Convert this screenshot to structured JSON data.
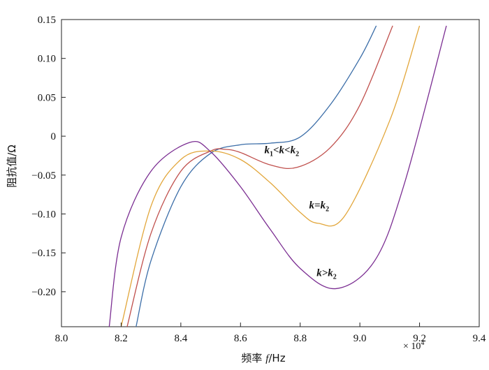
{
  "chart_data": {
    "type": "line",
    "title": "",
    "xlabel": "频率 f/Hz",
    "xlabel_parts": [
      "频率 ",
      "f",
      "/Hz"
    ],
    "ylabel": "阻抗值/Ω",
    "x_multiplier": "× 10",
    "x_multiplier_exp": "4",
    "xlim": [
      8.0,
      9.4
    ],
    "ylim": [
      -0.245,
      0.15
    ],
    "x_ticks": [
      8.0,
      8.2,
      8.4,
      8.6,
      8.8,
      9.0,
      9.2,
      9.4
    ],
    "x_tick_labels": [
      "8.0",
      "8.2",
      "8.4",
      "8.6",
      "8.8",
      "9.0",
      "9.2",
      "9.4"
    ],
    "y_ticks": [
      0.15,
      0.1,
      0.05,
      0,
      -0.05,
      -0.1,
      -0.15,
      -0.2
    ],
    "y_tick_labels": [
      "0.15",
      "0.10",
      "0.05",
      "0",
      "−0.05",
      "−0.10",
      "−0.15",
      "−0.20"
    ],
    "grid": false,
    "series": [
      {
        "color": "#3c6ea8",
        "x": [
          8.25,
          8.3,
          8.4,
          8.5,
          8.6,
          8.7,
          8.8,
          8.9,
          9.0,
          9.055
        ],
        "y": [
          -0.245,
          -0.16,
          -0.065,
          -0.022,
          -0.011,
          -0.009,
          -0.001,
          0.04,
          0.1,
          0.142
        ]
      },
      {
        "color": "#c0504d",
        "x": [
          8.22,
          8.3,
          8.4,
          8.5,
          8.55,
          8.6,
          8.7,
          8.79,
          8.9,
          9.0,
          9.11
        ],
        "y": [
          -0.245,
          -0.125,
          -0.045,
          -0.019,
          -0.017,
          -0.021,
          -0.037,
          -0.04,
          -0.015,
          0.04,
          0.142
        ]
      },
      {
        "color": "#e2a63a",
        "x": [
          8.2,
          8.3,
          8.4,
          8.5,
          8.6,
          8.7,
          8.8,
          8.86,
          8.95,
          9.1,
          9.2
        ],
        "y": [
          -0.245,
          -0.09,
          -0.03,
          -0.019,
          -0.03,
          -0.06,
          -0.098,
          -0.112,
          -0.102,
          0.02,
          0.142
        ]
      },
      {
        "color": "#7b2e92",
        "x": [
          8.16,
          8.2,
          8.3,
          8.43,
          8.5,
          8.6,
          8.7,
          8.8,
          8.92,
          9.05,
          9.15,
          9.29
        ],
        "y": [
          -0.245,
          -0.13,
          -0.045,
          -0.008,
          -0.02,
          -0.065,
          -0.12,
          -0.17,
          -0.196,
          -0.16,
          -0.06,
          0.142
        ]
      }
    ],
    "annotations": [
      {
        "parts": [
          [
            "k",
            "main"
          ],
          [
            "1",
            "sub"
          ],
          [
            "<",
            "main"
          ],
          [
            "k",
            "main"
          ],
          [
            "<",
            "main"
          ],
          [
            "k",
            "main"
          ],
          [
            "2",
            "sub"
          ]
        ],
        "x": 8.68,
        "y": -0.022
      },
      {
        "parts": [
          [
            "k",
            "main"
          ],
          [
            "=",
            "main"
          ],
          [
            "k",
            "main"
          ],
          [
            "2",
            "sub"
          ]
        ],
        "x": 8.83,
        "y": -0.093
      },
      {
        "parts": [
          [
            "k",
            "main"
          ],
          [
            ">",
            "main"
          ],
          [
            "k",
            "main"
          ],
          [
            "2",
            "sub"
          ]
        ],
        "x": 8.855,
        "y": -0.18
      }
    ]
  }
}
